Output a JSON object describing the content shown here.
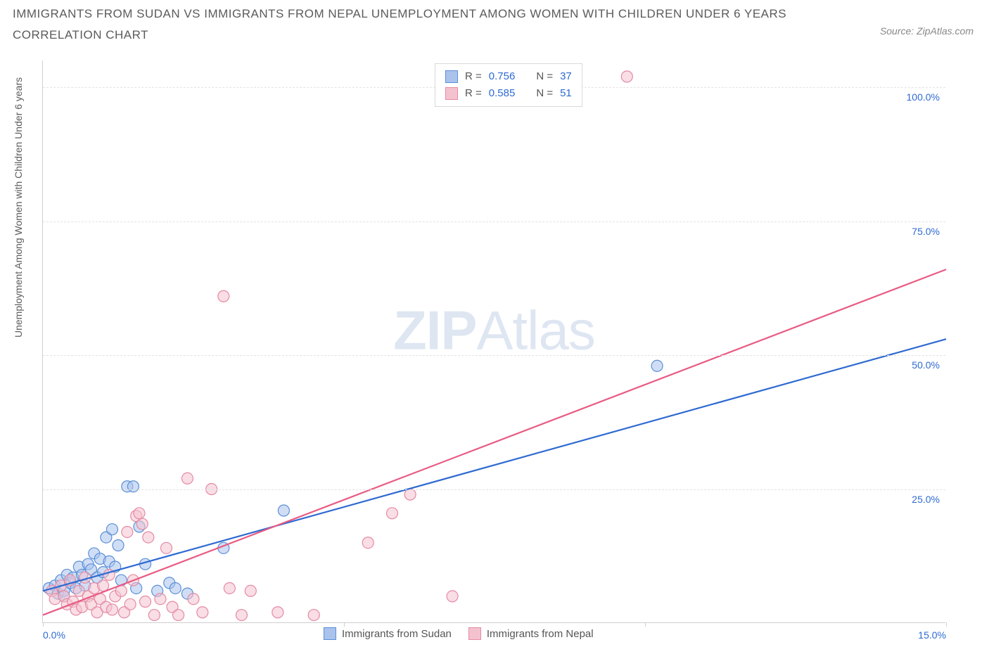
{
  "title_line1": "IMMIGRANTS FROM SUDAN VS IMMIGRANTS FROM NEPAL UNEMPLOYMENT AMONG WOMEN WITH CHILDREN UNDER 6 YEARS",
  "title_line2": "CORRELATION CHART",
  "source_label": "Source: ZipAtlas.com",
  "ylabel": "Unemployment Among Women with Children Under 6 years",
  "watermark_prefix": "ZIP",
  "watermark_suffix": "Atlas",
  "chart": {
    "type": "scatter",
    "background_color": "#ffffff",
    "grid_color": "#e3e3e3",
    "axis_color": "#cfcfcf",
    "tick_label_color": "#2e6ad1",
    "xlim": [
      0,
      15
    ],
    "ylim": [
      0,
      105
    ],
    "xticks": [
      0,
      5,
      10,
      15
    ],
    "xtick_labels": [
      "0.0%",
      "",
      "",
      "15.0%"
    ],
    "yticks": [
      25,
      50,
      75,
      100
    ],
    "ytick_labels": [
      "25.0%",
      "50.0%",
      "75.0%",
      "100.0%"
    ],
    "marker_radius": 8,
    "marker_stroke_width": 1.2,
    "line_width": 2.2,
    "series": [
      {
        "name": "Immigrants from Sudan",
        "fill": "#aac3ec",
        "stroke": "#5a8fd8",
        "line_color": "#2e6ad1",
        "R": "0.756",
        "N": "37",
        "regression": {
          "x1": 0,
          "y1": 6.0,
          "x2": 15,
          "y2": 53.0
        },
        "points": [
          [
            0.1,
            6.5
          ],
          [
            0.2,
            7.0
          ],
          [
            0.25,
            5.5
          ],
          [
            0.3,
            8.0
          ],
          [
            0.35,
            6.0
          ],
          [
            0.4,
            9.0
          ],
          [
            0.45,
            7.5
          ],
          [
            0.5,
            8.5
          ],
          [
            0.55,
            6.5
          ],
          [
            0.6,
            10.5
          ],
          [
            0.65,
            9.0
          ],
          [
            0.7,
            7.0
          ],
          [
            0.75,
            11.0
          ],
          [
            0.8,
            10.0
          ],
          [
            0.85,
            13.0
          ],
          [
            0.9,
            8.5
          ],
          [
            0.95,
            12.0
          ],
          [
            1.0,
            9.5
          ],
          [
            1.05,
            16.0
          ],
          [
            1.1,
            11.5
          ],
          [
            1.15,
            17.5
          ],
          [
            1.2,
            10.5
          ],
          [
            1.25,
            14.5
          ],
          [
            1.3,
            8.0
          ],
          [
            1.4,
            25.5
          ],
          [
            1.5,
            25.5
          ],
          [
            1.55,
            6.5
          ],
          [
            1.6,
            18.0
          ],
          [
            1.7,
            11.0
          ],
          [
            1.9,
            6.0
          ],
          [
            2.1,
            7.5
          ],
          [
            2.2,
            6.5
          ],
          [
            2.4,
            5.5
          ],
          [
            3.0,
            14.0
          ],
          [
            4.0,
            21.0
          ],
          [
            10.2,
            48.0
          ],
          [
            0.35,
            5.0
          ]
        ]
      },
      {
        "name": "Immigrants from Nepal",
        "fill": "#f4c2cf",
        "stroke": "#e58aa3",
        "line_color": "#e85b83",
        "R": "0.585",
        "N": "51",
        "regression": {
          "x1": 0,
          "y1": 1.5,
          "x2": 15,
          "y2": 66.0
        },
        "points": [
          [
            0.15,
            6.0
          ],
          [
            0.2,
            4.5
          ],
          [
            0.3,
            7.0
          ],
          [
            0.35,
            5.0
          ],
          [
            0.4,
            3.5
          ],
          [
            0.45,
            8.0
          ],
          [
            0.5,
            4.0
          ],
          [
            0.55,
            2.5
          ],
          [
            0.6,
            6.0
          ],
          [
            0.65,
            3.0
          ],
          [
            0.7,
            8.5
          ],
          [
            0.75,
            5.0
          ],
          [
            0.8,
            3.5
          ],
          [
            0.85,
            6.5
          ],
          [
            0.9,
            2.0
          ],
          [
            0.95,
            4.5
          ],
          [
            1.0,
            7.0
          ],
          [
            1.05,
            3.0
          ],
          [
            1.1,
            9.0
          ],
          [
            1.15,
            2.5
          ],
          [
            1.2,
            5.0
          ],
          [
            1.3,
            6.0
          ],
          [
            1.35,
            2.0
          ],
          [
            1.4,
            17.0
          ],
          [
            1.45,
            3.5
          ],
          [
            1.5,
            8.0
          ],
          [
            1.55,
            20.0
          ],
          [
            1.6,
            20.5
          ],
          [
            1.7,
            4.0
          ],
          [
            1.75,
            16.0
          ],
          [
            1.85,
            1.5
          ],
          [
            1.95,
            4.5
          ],
          [
            2.05,
            14.0
          ],
          [
            2.15,
            3.0
          ],
          [
            2.25,
            1.5
          ],
          [
            2.4,
            27.0
          ],
          [
            2.5,
            4.5
          ],
          [
            2.65,
            2.0
          ],
          [
            2.8,
            25.0
          ],
          [
            3.0,
            61.0
          ],
          [
            3.1,
            6.5
          ],
          [
            3.3,
            1.5
          ],
          [
            3.45,
            6.0
          ],
          [
            3.9,
            2.0
          ],
          [
            4.5,
            1.5
          ],
          [
            5.4,
            15.0
          ],
          [
            5.8,
            20.5
          ],
          [
            6.1,
            24.0
          ],
          [
            6.8,
            5.0
          ],
          [
            9.7,
            102.0
          ],
          [
            1.65,
            18.5
          ]
        ]
      }
    ]
  },
  "legend_bottom": [
    {
      "label": "Immigrants from Sudan",
      "fill": "#aac3ec",
      "stroke": "#5a8fd8"
    },
    {
      "label": "Immigrants from Nepal",
      "fill": "#f4c2cf",
      "stroke": "#e58aa3"
    }
  ]
}
